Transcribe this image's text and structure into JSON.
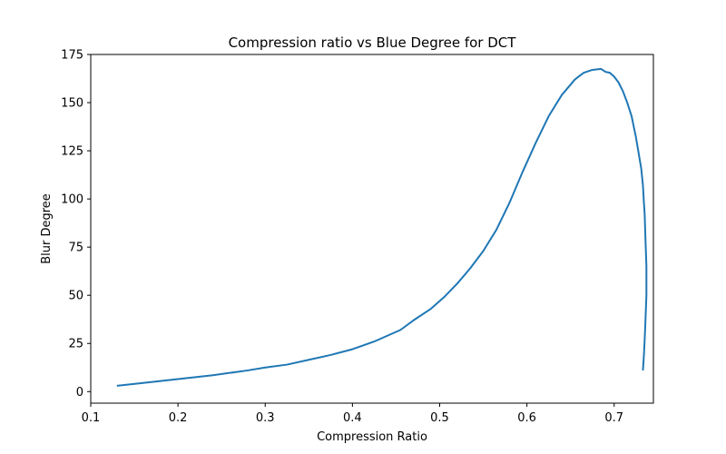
{
  "chart_data": {
    "type": "line",
    "title": "Compression ratio vs Blue Degree for DCT",
    "xlabel": "Compression Ratio",
    "ylabel": "Blur Degree",
    "xlim": [
      0.1,
      0.745
    ],
    "ylim": [
      -6,
      175
    ],
    "xticks": [
      0.1,
      0.2,
      0.3,
      0.4,
      0.5,
      0.6,
      0.7
    ],
    "xtick_labels": [
      "0.1",
      "0.2",
      "0.3",
      "0.4",
      "0.5",
      "0.6",
      "0.7"
    ],
    "yticks": [
      0,
      25,
      50,
      75,
      100,
      125,
      150,
      175
    ],
    "ytick_labels": [
      "0",
      "25",
      "50",
      "75",
      "100",
      "125",
      "150",
      "175"
    ],
    "grid": false,
    "legend": "none",
    "line_color": "#1f77b4",
    "series": [
      {
        "x": [
          0.13,
          0.16,
          0.2,
          0.24,
          0.28,
          0.3,
          0.325,
          0.35,
          0.375,
          0.4,
          0.425,
          0.445,
          0.455,
          0.47,
          0.49,
          0.505,
          0.52,
          0.535,
          0.55,
          0.565,
          0.58,
          0.595,
          0.61,
          0.625,
          0.64,
          0.655,
          0.665,
          0.675,
          0.685,
          0.69,
          0.695,
          0.7,
          0.705,
          0.71,
          0.715,
          0.72,
          0.725,
          0.728,
          0.731,
          0.733,
          0.734,
          0.735,
          0.736,
          0.737,
          0.737,
          0.736,
          0.735,
          0.734,
          0.733
        ],
        "y": [
          3,
          4.5,
          6.5,
          8.5,
          11,
          12.5,
          14,
          16.5,
          19,
          22,
          26,
          30,
          32,
          37,
          43,
          49,
          56,
          64,
          73,
          84,
          98,
          114,
          129,
          143,
          154,
          162,
          165.5,
          167,
          167.5,
          166,
          165.5,
          163.5,
          160.5,
          156,
          150,
          143,
          132,
          124,
          116,
          107,
          99,
          92,
          78,
          65,
          50,
          38,
          27,
          18,
          11
        ]
      }
    ]
  }
}
